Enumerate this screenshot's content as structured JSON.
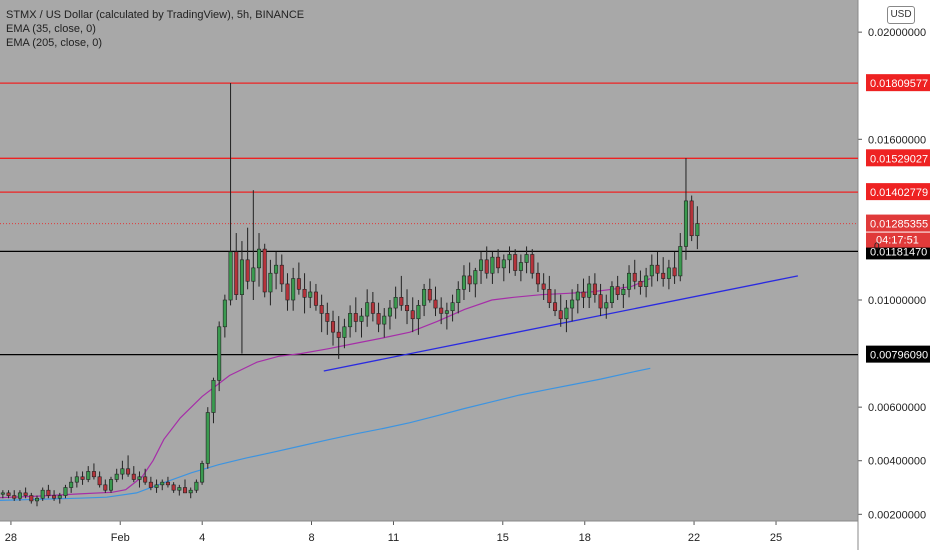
{
  "header": {
    "title": "STMX / US Dollar (calculated by TradingView), 5h, BINANCE",
    "indicators": [
      "EMA (35, close, 0)",
      "EMA (205, close, 0)"
    ],
    "currency_button": "USD"
  },
  "colors": {
    "plot_bg": "#a8a8a8",
    "up": "#3a9a4f",
    "down": "#b5333b",
    "ema35": "#a62ea8",
    "ema205": "#3d94e0",
    "trendline": "#2a2ae0",
    "red_level": "#ee2222",
    "black_level": "#000000",
    "last_price": "#e03a3a"
  },
  "chart_data": {
    "type": "candlestick",
    "ylim": [
      0.00175,
      0.0212
    ],
    "y_ticks": [
      {
        "value": 0.002,
        "label": "0.00200000"
      },
      {
        "value": 0.004,
        "label": "0.00400000"
      },
      {
        "value": 0.006,
        "label": "0.00600000"
      },
      {
        "value": 0.01,
        "label": "0.01000000"
      },
      {
        "value": 0.016,
        "label": "0.01600000"
      },
      {
        "value": 0.02,
        "label": "0.02000000"
      }
    ],
    "x_ticks": [
      {
        "day": 28,
        "label": "28"
      },
      {
        "day": 32,
        "label": "Feb"
      },
      {
        "day": 35,
        "label": "4"
      },
      {
        "day": 39,
        "label": "8"
      },
      {
        "day": 42,
        "label": "11"
      },
      {
        "day": 46,
        "label": "15"
      },
      {
        "day": 49,
        "label": "18"
      },
      {
        "day": 53,
        "label": "22"
      },
      {
        "day": 56,
        "label": "25"
      }
    ],
    "x_domain_days": [
      27.6,
      59.0
    ],
    "horizontal_levels": [
      {
        "value": 0.01809577,
        "label": "0.01809577",
        "style": "red"
      },
      {
        "value": 0.01529027,
        "label": "0.01529027",
        "style": "red"
      },
      {
        "value": 0.01402779,
        "label": "0.01402779",
        "style": "red"
      },
      {
        "value": 0.0118147,
        "label": "0.01181470",
        "style": "black"
      },
      {
        "value": 0.0079609,
        "label": "0.00796090",
        "style": "black"
      }
    ],
    "last_price": {
      "value": 0.01285355,
      "label": "0.01285355",
      "countdown": "04:17:51",
      "countdown_prefix": "0"
    },
    "trendline": {
      "x1_day": 39.45,
      "y1": 0.00735,
      "x2_day": 56.8,
      "y2": 0.0109
    },
    "candles_per_day": 4.8,
    "candles": [
      [
        0.00275,
        0.0029,
        0.0026,
        0.0028
      ],
      [
        0.0028,
        0.0029,
        0.0026,
        0.0027
      ],
      [
        0.0027,
        0.0029,
        0.0025,
        0.0026
      ],
      [
        0.0026,
        0.0029,
        0.0025,
        0.0028
      ],
      [
        0.0028,
        0.003,
        0.0026,
        0.0027
      ],
      [
        0.0027,
        0.0028,
        0.0024,
        0.0025
      ],
      [
        0.0025,
        0.0027,
        0.0023,
        0.0026
      ],
      [
        0.0026,
        0.003,
        0.0025,
        0.0029
      ],
      [
        0.0029,
        0.0031,
        0.0026,
        0.0027
      ],
      [
        0.0027,
        0.0029,
        0.0025,
        0.0026
      ],
      [
        0.0026,
        0.0028,
        0.0024,
        0.0027
      ],
      [
        0.0027,
        0.0031,
        0.0026,
        0.003
      ],
      [
        0.003,
        0.0034,
        0.0028,
        0.0032
      ],
      [
        0.0032,
        0.0036,
        0.003,
        0.0034
      ],
      [
        0.0034,
        0.0036,
        0.0031,
        0.0033
      ],
      [
        0.0033,
        0.0038,
        0.0032,
        0.0036
      ],
      [
        0.0036,
        0.0039,
        0.0033,
        0.0034
      ],
      [
        0.0034,
        0.0036,
        0.003,
        0.0031
      ],
      [
        0.0031,
        0.0033,
        0.0028,
        0.0029
      ],
      [
        0.0029,
        0.0034,
        0.0028,
        0.0033
      ],
      [
        0.0033,
        0.0037,
        0.0032,
        0.0035
      ],
      [
        0.0035,
        0.004,
        0.0033,
        0.0037
      ],
      [
        0.0037,
        0.0042,
        0.0034,
        0.0035
      ],
      [
        0.0035,
        0.0038,
        0.0032,
        0.0033
      ],
      [
        0.0033,
        0.0036,
        0.003,
        0.0034
      ],
      [
        0.0034,
        0.0037,
        0.0031,
        0.0032
      ],
      [
        0.0032,
        0.0034,
        0.0029,
        0.003
      ],
      [
        0.003,
        0.0033,
        0.0028,
        0.0031
      ],
      [
        0.0031,
        0.0033,
        0.0029,
        0.0032
      ],
      [
        0.0032,
        0.0034,
        0.003,
        0.0031
      ],
      [
        0.0031,
        0.0032,
        0.0028,
        0.0029
      ],
      [
        0.0029,
        0.0031,
        0.0027,
        0.003
      ],
      [
        0.003,
        0.0033,
        0.0029,
        0.0028
      ],
      [
        0.0028,
        0.003,
        0.0026,
        0.0029
      ],
      [
        0.0029,
        0.0033,
        0.0028,
        0.0032
      ],
      [
        0.0032,
        0.004,
        0.0031,
        0.0039
      ],
      [
        0.0039,
        0.006,
        0.0037,
        0.0058
      ],
      [
        0.0058,
        0.0071,
        0.0054,
        0.007
      ],
      [
        0.007,
        0.0092,
        0.0066,
        0.009
      ],
      [
        0.009,
        0.0102,
        0.0086,
        0.01
      ],
      [
        0.01,
        0.0181,
        0.0098,
        0.0118
      ],
      [
        0.0118,
        0.0125,
        0.01,
        0.0102
      ],
      [
        0.0102,
        0.0122,
        0.008,
        0.0115
      ],
      [
        0.0115,
        0.0127,
        0.0104,
        0.0107
      ],
      [
        0.0107,
        0.0141,
        0.01,
        0.0112
      ],
      [
        0.0112,
        0.0125,
        0.0105,
        0.0119
      ],
      [
        0.0119,
        0.0121,
        0.0101,
        0.0103
      ],
      [
        0.0103,
        0.0115,
        0.0098,
        0.011
      ],
      [
        0.011,
        0.0118,
        0.0104,
        0.0113
      ],
      [
        0.0113,
        0.0117,
        0.0103,
        0.0106
      ],
      [
        0.0106,
        0.011,
        0.0096,
        0.01
      ],
      [
        0.01,
        0.0112,
        0.0096,
        0.0108
      ],
      [
        0.0108,
        0.0114,
        0.0102,
        0.0104
      ],
      [
        0.0104,
        0.011,
        0.0095,
        0.0101
      ],
      [
        0.0101,
        0.0107,
        0.0097,
        0.0103
      ],
      [
        0.0103,
        0.0106,
        0.0096,
        0.0098
      ],
      [
        0.0098,
        0.0102,
        0.0088,
        0.0095
      ],
      [
        0.0095,
        0.0099,
        0.0087,
        0.0092
      ],
      [
        0.0092,
        0.0096,
        0.0083,
        0.0088
      ],
      [
        0.0088,
        0.0094,
        0.0078,
        0.0086
      ],
      [
        0.0086,
        0.0093,
        0.0082,
        0.009
      ],
      [
        0.009,
        0.0098,
        0.0086,
        0.0095
      ],
      [
        0.0095,
        0.0101,
        0.0088,
        0.0092
      ],
      [
        0.0092,
        0.0097,
        0.0086,
        0.0094
      ],
      [
        0.0094,
        0.0104,
        0.009,
        0.0099
      ],
      [
        0.0099,
        0.0103,
        0.0092,
        0.0095
      ],
      [
        0.0095,
        0.0099,
        0.0088,
        0.0091
      ],
      [
        0.0091,
        0.0097,
        0.0086,
        0.0094
      ],
      [
        0.0094,
        0.01,
        0.0089,
        0.0097
      ],
      [
        0.0097,
        0.0105,
        0.0093,
        0.0101
      ],
      [
        0.0101,
        0.0109,
        0.0096,
        0.0098
      ],
      [
        0.0098,
        0.0104,
        0.0091,
        0.0096
      ],
      [
        0.0096,
        0.0101,
        0.0088,
        0.0093
      ],
      [
        0.0093,
        0.01,
        0.0087,
        0.0098
      ],
      [
        0.0098,
        0.0106,
        0.0094,
        0.0104
      ],
      [
        0.0104,
        0.0108,
        0.0099,
        0.01
      ],
      [
        0.01,
        0.0105,
        0.0094,
        0.0097
      ],
      [
        0.0097,
        0.0101,
        0.0091,
        0.0095
      ],
      [
        0.0095,
        0.0099,
        0.0089,
        0.0096
      ],
      [
        0.0096,
        0.0102,
        0.0092,
        0.0099
      ],
      [
        0.0099,
        0.0107,
        0.0095,
        0.0104
      ],
      [
        0.0104,
        0.0113,
        0.01,
        0.0109
      ],
      [
        0.0109,
        0.0114,
        0.0103,
        0.0106
      ],
      [
        0.0106,
        0.0112,
        0.0101,
        0.0111
      ],
      [
        0.0111,
        0.0118,
        0.0106,
        0.0115
      ],
      [
        0.0115,
        0.012,
        0.0108,
        0.011
      ],
      [
        0.011,
        0.0118,
        0.0106,
        0.0116
      ],
      [
        0.0116,
        0.0119,
        0.011,
        0.0112
      ],
      [
        0.0112,
        0.0117,
        0.0107,
        0.0115
      ],
      [
        0.0115,
        0.012,
        0.011,
        0.0117
      ],
      [
        0.0117,
        0.0119,
        0.0109,
        0.0111
      ],
      [
        0.0111,
        0.0117,
        0.0107,
        0.0114
      ],
      [
        0.0114,
        0.012,
        0.011,
        0.0117
      ],
      [
        0.0117,
        0.0119,
        0.0108,
        0.011
      ],
      [
        0.011,
        0.0114,
        0.0103,
        0.0106
      ],
      [
        0.0106,
        0.011,
        0.01,
        0.0104
      ],
      [
        0.0104,
        0.0109,
        0.0097,
        0.0099
      ],
      [
        0.0099,
        0.0104,
        0.0094,
        0.0096
      ],
      [
        0.0096,
        0.0102,
        0.009,
        0.0093
      ],
      [
        0.0093,
        0.01,
        0.0088,
        0.0097
      ],
      [
        0.0097,
        0.0104,
        0.0092,
        0.01
      ],
      [
        0.01,
        0.0106,
        0.0095,
        0.0103
      ],
      [
        0.0103,
        0.0108,
        0.0097,
        0.0101
      ],
      [
        0.0101,
        0.0109,
        0.0097,
        0.0106
      ],
      [
        0.0106,
        0.011,
        0.0099,
        0.0102
      ],
      [
        0.0102,
        0.0106,
        0.0094,
        0.0097
      ],
      [
        0.0097,
        0.0102,
        0.0093,
        0.0099
      ],
      [
        0.0099,
        0.0107,
        0.0097,
        0.0105
      ],
      [
        0.0105,
        0.0109,
        0.01,
        0.0102
      ],
      [
        0.0102,
        0.0106,
        0.0097,
        0.0104
      ],
      [
        0.0104,
        0.0113,
        0.0101,
        0.011
      ],
      [
        0.011,
        0.0115,
        0.0104,
        0.0107
      ],
      [
        0.0107,
        0.0111,
        0.0102,
        0.0105
      ],
      [
        0.0105,
        0.0112,
        0.0101,
        0.0109
      ],
      [
        0.0109,
        0.0117,
        0.0105,
        0.0113
      ],
      [
        0.0113,
        0.0118,
        0.0107,
        0.011
      ],
      [
        0.011,
        0.0116,
        0.0105,
        0.0108
      ],
      [
        0.0108,
        0.0115,
        0.0104,
        0.0112
      ],
      [
        0.0112,
        0.0118,
        0.0106,
        0.0109
      ],
      [
        0.0109,
        0.0125,
        0.0107,
        0.012
      ],
      [
        0.012,
        0.0153,
        0.0115,
        0.0137
      ],
      [
        0.0137,
        0.0139,
        0.0122,
        0.0124
      ],
      [
        0.0124,
        0.0135,
        0.0119,
        0.01285355
      ]
    ],
    "ema35": [
      [
        27.6,
        0.00262
      ],
      [
        29.0,
        0.00268
      ],
      [
        30.5,
        0.00276
      ],
      [
        31.7,
        0.00282
      ],
      [
        32.2,
        0.00292
      ],
      [
        32.8,
        0.0034
      ],
      [
        33.2,
        0.004
      ],
      [
        33.6,
        0.0048
      ],
      [
        34.2,
        0.0056
      ],
      [
        35.0,
        0.0064
      ],
      [
        36.0,
        0.00718
      ],
      [
        37.0,
        0.00768
      ],
      [
        37.8,
        0.0079
      ],
      [
        38.6,
        0.008
      ],
      [
        39.6,
        0.00818
      ],
      [
        40.6,
        0.00838
      ],
      [
        41.6,
        0.00858
      ],
      [
        42.6,
        0.0088
      ],
      [
        43.6,
        0.0092
      ],
      [
        44.6,
        0.00965
      ],
      [
        45.6,
        0.01
      ],
      [
        46.4,
        0.0101
      ],
      [
        47.4,
        0.0102
      ],
      [
        48.4,
        0.01025
      ],
      [
        49.2,
        0.0103
      ],
      [
        50.0,
        0.0104
      ],
      [
        50.7,
        0.0105
      ],
      [
        51.4,
        0.0108
      ]
    ],
    "ema205": [
      [
        27.6,
        0.00252
      ],
      [
        29.0,
        0.00256
      ],
      [
        30.5,
        0.0026
      ],
      [
        31.5,
        0.00264
      ],
      [
        32.6,
        0.0028
      ],
      [
        33.6,
        0.00318
      ],
      [
        34.6,
        0.00355
      ],
      [
        35.6,
        0.00385
      ],
      [
        36.6,
        0.0041
      ],
      [
        37.6,
        0.00432
      ],
      [
        38.6,
        0.00455
      ],
      [
        39.6,
        0.00478
      ],
      [
        40.6,
        0.005
      ],
      [
        41.6,
        0.0052
      ],
      [
        42.6,
        0.00542
      ],
      [
        43.6,
        0.00568
      ],
      [
        44.6,
        0.00595
      ],
      [
        45.6,
        0.0062
      ],
      [
        46.6,
        0.00645
      ],
      [
        47.6,
        0.00665
      ],
      [
        48.6,
        0.00685
      ],
      [
        49.6,
        0.00705
      ],
      [
        50.6,
        0.00728
      ],
      [
        51.4,
        0.00745
      ]
    ]
  }
}
